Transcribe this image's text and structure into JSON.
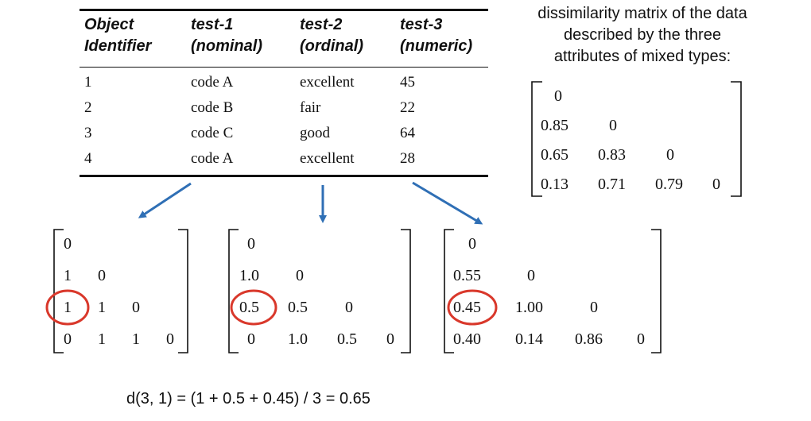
{
  "table": {
    "columns": [
      {
        "line1": "Object",
        "line2": "Identifier"
      },
      {
        "line1": "test-1",
        "line2": "(nominal)"
      },
      {
        "line1": "test-2",
        "line2": "(ordinal)"
      },
      {
        "line1": "test-3",
        "line2": "(numeric)"
      }
    ],
    "rows": [
      [
        "1",
        "code A",
        "excellent",
        "45"
      ],
      [
        "2",
        "code B",
        "fair",
        "22"
      ],
      [
        "3",
        "code C",
        "good",
        "64"
      ],
      [
        "4",
        "code A",
        "excellent",
        "28"
      ]
    ]
  },
  "overall": {
    "caption_lines": [
      "dissimilarity matrix of the data",
      "described by the three",
      "attributes of mixed types:"
    ],
    "rows": [
      [
        "0"
      ],
      [
        "0.85",
        "0"
      ],
      [
        "0.65",
        "0.83",
        "0"
      ],
      [
        "0.13",
        "0.71",
        "0.79",
        "0"
      ]
    ]
  },
  "matrices": [
    {
      "name": "nominal",
      "rows": [
        [
          "0"
        ],
        [
          "1",
          "0"
        ],
        [
          "1",
          "1",
          "0"
        ],
        [
          "0",
          "1",
          "1",
          "0"
        ]
      ]
    },
    {
      "name": "ordinal",
      "rows": [
        [
          "0"
        ],
        [
          "1.0",
          "0"
        ],
        [
          "0.5",
          "0.5",
          "0"
        ],
        [
          "0",
          "1.0",
          "0.5",
          "0"
        ]
      ]
    },
    {
      "name": "numeric",
      "rows": [
        [
          "0"
        ],
        [
          "0.55",
          "0"
        ],
        [
          "0.45",
          "1.00",
          "0"
        ],
        [
          "0.40",
          "0.14",
          "0.86",
          "0"
        ]
      ]
    }
  ],
  "formula": "d(3, 1) = (1 + 0.5 + 0.45) / 3 = 0.65",
  "colors": {
    "arrow": "#2f6fb5",
    "circle": "#d9382b",
    "text": "#111111"
  }
}
